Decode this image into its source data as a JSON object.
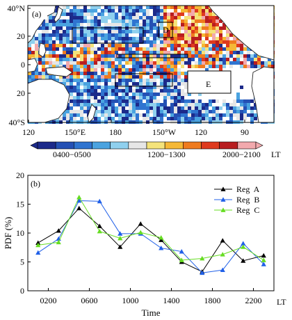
{
  "panel_a": {
    "label": "(a)",
    "x_ticks": [
      "120",
      "150°E",
      "180",
      "150°W",
      "120",
      "90"
    ],
    "y_ticks": [
      "40°N",
      "20",
      "0",
      "20",
      "40°S"
    ],
    "region_labels": [
      "D",
      "E"
    ],
    "colorbar": {
      "labels": [
        "0400−0500",
        "1200−1300",
        "2000−2100"
      ],
      "unit": "LT",
      "colors": [
        "#1c2a8a",
        "#2450b4",
        "#2f74d0",
        "#4aa3e0",
        "#8fd0ee",
        "#e6e6e6",
        "#f4e37a",
        "#f5b836",
        "#ef7b1f",
        "#df3a1e",
        "#b81d20",
        "#f2a9ad"
      ]
    },
    "ocean_color": "#ffffff",
    "land_color": "#ffffff"
  },
  "chart_data": {
    "type": "line",
    "panel_label": "(b)",
    "xlabel": "Time",
    "ylabel": "PDF (%)",
    "x_unit_label": "LT",
    "x": [
      100,
      300,
      500,
      700,
      900,
      1100,
      1300,
      1500,
      1700,
      1900,
      2100,
      2300
    ],
    "x_tick_values": [
      200,
      600,
      1000,
      1400,
      1800,
      2200
    ],
    "x_tick_labels": [
      "0200",
      "0600",
      "1000",
      "1400",
      "1800",
      "2200"
    ],
    "xlim": [
      0,
      2400
    ],
    "ylim": [
      0,
      20
    ],
    "y_ticks": [
      0,
      5,
      10,
      15,
      20
    ],
    "legend_position": "top-right",
    "grid": false,
    "series": [
      {
        "name": "Reg  A",
        "color": "#000000",
        "marker": "triangle",
        "values": [
          8.3,
          10.4,
          14.3,
          11.2,
          7.6,
          11.6,
          8.8,
          5.0,
          3.3,
          8.7,
          5.2,
          6.1
        ]
      },
      {
        "name": "Reg  B",
        "color": "#2060e8",
        "marker": "triangle",
        "values": [
          6.6,
          9.0,
          15.6,
          15.5,
          9.9,
          9.9,
          7.4,
          6.8,
          3.1,
          3.6,
          8.2,
          4.6
        ]
      },
      {
        "name": "Reg  C",
        "color": "#66dd22",
        "marker": "triangle",
        "values": [
          7.9,
          8.4,
          16.2,
          10.3,
          9.1,
          10.1,
          9.2,
          5.3,
          5.6,
          6.3,
          7.6,
          5.3
        ]
      }
    ]
  }
}
